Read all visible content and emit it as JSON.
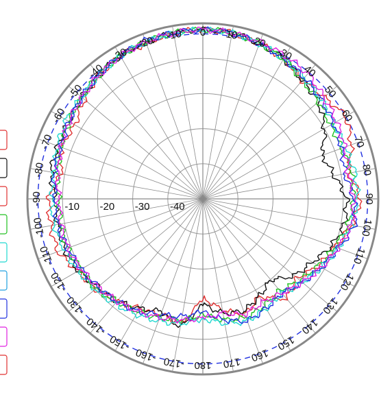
{
  "chart_data": {
    "type": "polar-line",
    "title": "",
    "angle_ticks_deg": [
      -170,
      -160,
      -150,
      -140,
      -130,
      -120,
      -110,
      -100,
      -90,
      -80,
      -70,
      -60,
      -50,
      -40,
      -30,
      -20,
      -10,
      0,
      10,
      20,
      30,
      40,
      50,
      60,
      70,
      80,
      90,
      100,
      110,
      120,
      130,
      140,
      150,
      160,
      170,
      180
    ],
    "angle_labels": [
      "-170",
      "-160",
      "-150",
      "-140",
      "-130",
      "-120",
      "-110",
      "-100",
      "-90",
      "-80",
      "-70",
      "-60",
      "-50",
      "-40",
      "-30",
      "-20",
      "-10",
      "0",
      "10",
      "20",
      "30",
      "40",
      "50",
      "60",
      "70",
      "80",
      "90",
      "100",
      "110",
      "120",
      "130",
      "140",
      "150",
      "160",
      "170",
      "180"
    ],
    "radial_ticks": [
      -10,
      -20,
      -30,
      -40
    ],
    "radial_labels": [
      "-10",
      "-20",
      "-30",
      "-40"
    ],
    "rlim": [
      -50,
      0
    ],
    "reference_circle": -3,
    "grid": true,
    "legend_placement": "left (partially cut off)",
    "series": [
      {
        "color": "#e03030",
        "points": [
          [
            -180,
            -22
          ],
          [
            -170,
            -14
          ],
          [
            -160,
            -15
          ],
          [
            -150,
            -14
          ],
          [
            -140,
            -12
          ],
          [
            -130,
            -10
          ],
          [
            -120,
            -9
          ],
          [
            -110,
            -6
          ],
          [
            -100,
            -6
          ],
          [
            -90,
            -6
          ],
          [
            -80,
            -9
          ],
          [
            -70,
            -7
          ],
          [
            -60,
            -8
          ],
          [
            -50,
            -6
          ],
          [
            -40,
            -4
          ],
          [
            -30,
            -3
          ],
          [
            -20,
            -3
          ],
          [
            -10,
            -2
          ],
          [
            0,
            -1.8
          ],
          [
            10,
            -2
          ],
          [
            20,
            -3
          ],
          [
            30,
            -4
          ],
          [
            40,
            -6
          ],
          [
            50,
            -5
          ],
          [
            60,
            -3
          ],
          [
            70,
            -5
          ],
          [
            80,
            -8
          ],
          [
            90,
            -5
          ],
          [
            100,
            -7
          ],
          [
            110,
            -10
          ],
          [
            120,
            -12
          ],
          [
            130,
            -15
          ],
          [
            140,
            -13
          ],
          [
            150,
            -18
          ],
          [
            160,
            -15
          ],
          [
            170,
            -18
          ]
        ]
      },
      {
        "color": "#101010",
        "points": [
          [
            -180,
            -20
          ],
          [
            -170,
            -13
          ],
          [
            -160,
            -16
          ],
          [
            -150,
            -14
          ],
          [
            -140,
            -12
          ],
          [
            -130,
            -11
          ],
          [
            -120,
            -9
          ],
          [
            -110,
            -8
          ],
          [
            -100,
            -8
          ],
          [
            -90,
            -8
          ],
          [
            -80,
            -6
          ],
          [
            -70,
            -6
          ],
          [
            -60,
            -6
          ],
          [
            -50,
            -5
          ],
          [
            -40,
            -4
          ],
          [
            -30,
            -3
          ],
          [
            -20,
            -2.5
          ],
          [
            -10,
            -2
          ],
          [
            0,
            -1.8
          ],
          [
            10,
            -2
          ],
          [
            20,
            -3
          ],
          [
            30,
            -4
          ],
          [
            40,
            -6
          ],
          [
            50,
            -7
          ],
          [
            60,
            -10
          ],
          [
            70,
            -14
          ],
          [
            80,
            -12
          ],
          [
            90,
            -9
          ],
          [
            100,
            -9
          ],
          [
            110,
            -11
          ],
          [
            120,
            -14
          ],
          [
            130,
            -16
          ],
          [
            140,
            -20
          ],
          [
            150,
            -18
          ],
          [
            160,
            -16
          ],
          [
            170,
            -17
          ]
        ]
      },
      {
        "color": "#20c020",
        "points": [
          [
            -180,
            -17
          ],
          [
            -170,
            -15
          ],
          [
            -160,
            -14
          ],
          [
            -150,
            -13
          ],
          [
            -140,
            -12
          ],
          [
            -130,
            -10
          ],
          [
            -120,
            -10
          ],
          [
            -110,
            -9
          ],
          [
            -100,
            -9
          ],
          [
            -90,
            -9
          ],
          [
            -80,
            -8
          ],
          [
            -70,
            -7
          ],
          [
            -60,
            -6
          ],
          [
            -50,
            -5
          ],
          [
            -40,
            -4
          ],
          [
            -30,
            -3
          ],
          [
            -20,
            -2.5
          ],
          [
            -10,
            -2
          ],
          [
            0,
            -1.8
          ],
          [
            10,
            -2
          ],
          [
            20,
            -3
          ],
          [
            30,
            -4
          ],
          [
            40,
            -6
          ],
          [
            50,
            -7
          ],
          [
            60,
            -8
          ],
          [
            70,
            -8
          ],
          [
            80,
            -7
          ],
          [
            90,
            -7
          ],
          [
            100,
            -8
          ],
          [
            110,
            -10
          ],
          [
            120,
            -12
          ],
          [
            130,
            -14
          ],
          [
            140,
            -16
          ],
          [
            150,
            -15
          ],
          [
            160,
            -14
          ],
          [
            170,
            -15
          ]
        ]
      },
      {
        "color": "#20d8d0",
        "points": [
          [
            -180,
            -16
          ],
          [
            -170,
            -14
          ],
          [
            -160,
            -13
          ],
          [
            -150,
            -12
          ],
          [
            -140,
            -11
          ],
          [
            -130,
            -10
          ],
          [
            -120,
            -9
          ],
          [
            -110,
            -8
          ],
          [
            -100,
            -7
          ],
          [
            -90,
            -7
          ],
          [
            -80,
            -7
          ],
          [
            -70,
            -6
          ],
          [
            -60,
            -5
          ],
          [
            -50,
            -5
          ],
          [
            -40,
            -4
          ],
          [
            -30,
            -3
          ],
          [
            -20,
            -2.5
          ],
          [
            -10,
            -2
          ],
          [
            0,
            -1.8
          ],
          [
            10,
            -2
          ],
          [
            20,
            -3
          ],
          [
            30,
            -4
          ],
          [
            40,
            -5
          ],
          [
            50,
            -6
          ],
          [
            60,
            -7
          ],
          [
            70,
            -7
          ],
          [
            80,
            -6
          ],
          [
            90,
            -6
          ],
          [
            100,
            -7
          ],
          [
            110,
            -9
          ],
          [
            120,
            -11
          ],
          [
            130,
            -13
          ],
          [
            140,
            -15
          ],
          [
            150,
            -14
          ],
          [
            160,
            -13
          ],
          [
            170,
            -14
          ]
        ]
      },
      {
        "color": "#2030e0",
        "points": [
          [
            -180,
            -18
          ],
          [
            -170,
            -16
          ],
          [
            -160,
            -15
          ],
          [
            -150,
            -13
          ],
          [
            -140,
            -12
          ],
          [
            -130,
            -11
          ],
          [
            -120,
            -10
          ],
          [
            -110,
            -9
          ],
          [
            -100,
            -8
          ],
          [
            -90,
            -8
          ],
          [
            -80,
            -7
          ],
          [
            -70,
            -7
          ],
          [
            -60,
            -6
          ],
          [
            -50,
            -5
          ],
          [
            -40,
            -4
          ],
          [
            -30,
            -3
          ],
          [
            -20,
            -2
          ],
          [
            -10,
            -2
          ],
          [
            0,
            -1.8
          ],
          [
            10,
            -2
          ],
          [
            20,
            -3
          ],
          [
            30,
            -4
          ],
          [
            40,
            -5
          ],
          [
            50,
            -6
          ],
          [
            60,
            -7
          ],
          [
            70,
            -8
          ],
          [
            80,
            -9
          ],
          [
            90,
            -7
          ],
          [
            100,
            -6
          ],
          [
            110,
            -9
          ],
          [
            120,
            -11
          ],
          [
            130,
            -13
          ],
          [
            140,
            -15
          ],
          [
            150,
            -14
          ],
          [
            160,
            -13
          ],
          [
            170,
            -15
          ]
        ]
      },
      {
        "color": "#e020e0",
        "points": [
          [
            -180,
            -16
          ],
          [
            -170,
            -15
          ],
          [
            -160,
            -14
          ],
          [
            -150,
            -13
          ],
          [
            -140,
            -12
          ],
          [
            -130,
            -11
          ],
          [
            -120,
            -10
          ],
          [
            -110,
            -9
          ],
          [
            -100,
            -9
          ],
          [
            -90,
            -9
          ],
          [
            -80,
            -8
          ],
          [
            -70,
            -7
          ],
          [
            -60,
            -6
          ],
          [
            -50,
            -5
          ],
          [
            -40,
            -4
          ],
          [
            -30,
            -3
          ],
          [
            -20,
            -2.5
          ],
          [
            -10,
            -2
          ],
          [
            0,
            -1.8
          ],
          [
            10,
            -2
          ],
          [
            20,
            -2.5
          ],
          [
            30,
            -3
          ],
          [
            40,
            -3.5
          ],
          [
            50,
            -5
          ],
          [
            60,
            -6
          ],
          [
            70,
            -7
          ],
          [
            80,
            -8
          ],
          [
            90,
            -7
          ],
          [
            100,
            -7
          ],
          [
            110,
            -9
          ],
          [
            120,
            -11
          ],
          [
            130,
            -13
          ],
          [
            140,
            -15
          ],
          [
            150,
            -16
          ],
          [
            160,
            -15
          ],
          [
            170,
            -17
          ]
        ]
      }
    ]
  },
  "legend_swatches": [
    {
      "color": "#e03030"
    },
    {
      "color": "#101010"
    },
    {
      "color": "#e03030"
    },
    {
      "color": "#20c020"
    },
    {
      "color": "#20d8d0"
    },
    {
      "color": "#20a0e0"
    },
    {
      "color": "#2030e0"
    },
    {
      "color": "#e020e0"
    },
    {
      "color": "#e03030"
    }
  ]
}
